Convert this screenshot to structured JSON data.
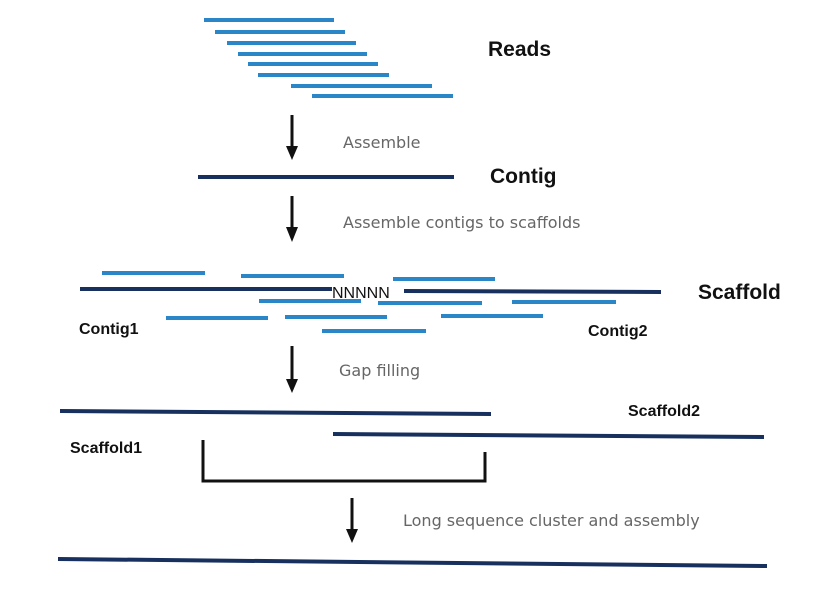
{
  "colors": {
    "read": "#2a86c7",
    "contig": "#17305e",
    "arrow": "#111111",
    "label": "#111111",
    "step_text": "#666666",
    "bracket": "#111111"
  },
  "labels": {
    "reads": "Reads",
    "contig": "Contig",
    "scaffold": "Scaffold",
    "gap": "NNNNN",
    "contig1": "Contig1",
    "contig2": "Contig2",
    "scaffold1": "Scaffold1",
    "scaffold2": "Scaffold2"
  },
  "steps": {
    "assemble": "Assemble",
    "scaffolding": "Assemble contigs to scaffolds",
    "gap_filling": "Gap filling",
    "long_sequence": "Long sequence cluster and assembly"
  },
  "icons": [
    "down-arrow-icon"
  ]
}
